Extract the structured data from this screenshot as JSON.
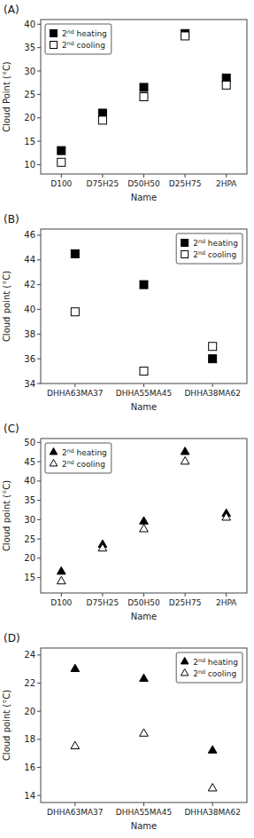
{
  "chart_data": [
    {
      "type": "scatter",
      "title": "(A)",
      "categories": [
        "D100",
        "D75H25",
        "D50H50",
        "D25H75",
        "2HPA"
      ],
      "series": [
        {
          "name": "2nd heating",
          "color": "black",
          "marker": "square",
          "values": [
            13.0,
            21.0,
            26.5,
            38.0,
            28.5
          ]
        },
        {
          "name": "2nd cooling",
          "color": "white",
          "marker": "square",
          "values": [
            10.5,
            19.5,
            24.5,
            37.5,
            27.0
          ]
        }
      ],
      "ylabel": "Cloud Point (°C)",
      "xlabel": "Name",
      "ylim": [
        8,
        41
      ],
      "yticks": [
        10,
        15,
        20,
        25,
        30,
        35,
        40
      ],
      "legend": "upper left"
    },
    {
      "type": "scatter",
      "title": "(B)",
      "categories": [
        "DHHA63MA37",
        "DHHA55MA45",
        "DHHA38MA62"
      ],
      "series": [
        {
          "name": "2nd heating",
          "color": "black",
          "marker": "square",
          "values": [
            44.5,
            42.0,
            36.0
          ]
        },
        {
          "name": "2nd cooling",
          "color": "white",
          "marker": "square",
          "values": [
            39.8,
            35.0,
            37.0
          ]
        }
      ],
      "ylabel": "Cloud point (°C)",
      "xlabel": "Name",
      "ylim": [
        34,
        46.5
      ],
      "yticks": [
        34,
        36,
        38,
        40,
        42,
        44,
        46
      ],
      "legend": "upper right"
    },
    {
      "type": "scatter",
      "title": "(C)",
      "categories": [
        "D100",
        "D75H25",
        "D50H50",
        "D25H75",
        "2HPA"
      ],
      "series": [
        {
          "name": "2nd heating",
          "color": "black",
          "marker": "triangle",
          "values": [
            16.5,
            23.5,
            29.5,
            47.5,
            31.5
          ]
        },
        {
          "name": "2nd cooling",
          "color": "white",
          "marker": "triangle",
          "values": [
            14.0,
            22.5,
            27.5,
            45.0,
            30.5
          ]
        }
      ],
      "ylabel": "Cloud point (°C)",
      "xlabel": "Name",
      "ylim": [
        11,
        51
      ],
      "yticks": [
        15,
        20,
        25,
        30,
        35,
        40,
        45,
        50
      ],
      "legend": "upper left"
    },
    {
      "type": "scatter",
      "title": "(D)",
      "categories": [
        "DHHA63MA37",
        "DHHA55MA45",
        "DHHA38MA62"
      ],
      "series": [
        {
          "name": "2nd heating",
          "color": "black",
          "marker": "triangle",
          "values": [
            23.0,
            22.3,
            17.2
          ]
        },
        {
          "name": "2nd cooling",
          "color": "white",
          "marker": "triangle",
          "values": [
            17.5,
            18.4,
            14.5
          ]
        }
      ],
      "ylabel": "Cloud point (°C)",
      "xlabel": "Name",
      "ylim": [
        13.5,
        24.5
      ],
      "yticks": [
        14,
        16,
        18,
        20,
        22,
        24
      ],
      "legend": "upper right"
    }
  ]
}
